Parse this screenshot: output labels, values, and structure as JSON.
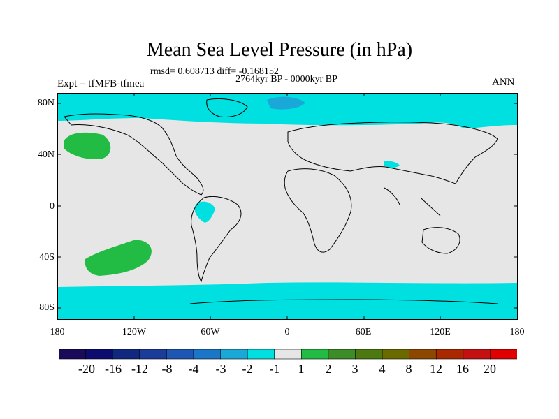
{
  "title": "Mean Sea Level Pressure (in hPa)",
  "stats": "rmsd= 0.608713 diff= -0.168152",
  "period": "2764kyr BP - 0000kyr BP",
  "experiment": "Expt = tfMFB-tfmea",
  "season": "ANN",
  "lat_labels": [
    "80N",
    "40N",
    "0",
    "40S",
    "80S"
  ],
  "lon_labels": [
    "180",
    "120W",
    "60W",
    "0",
    "60E",
    "120E",
    "180"
  ],
  "colorbar": {
    "labels": [
      "-20",
      "-16",
      "-12",
      "-8",
      "-4",
      "-3",
      "-2",
      "-1",
      "1",
      "2",
      "3",
      "4",
      "8",
      "12",
      "16",
      "20"
    ],
    "colors": [
      "#1a0a5a",
      "#0c0c70",
      "#102880",
      "#1c3c9a",
      "#1e56b4",
      "#1c76c8",
      "#1aa8d8",
      "#00e0e0",
      "#e6e6e6",
      "#22bb44",
      "#3c8c28",
      "#4c7a10",
      "#6a6a00",
      "#8c4800",
      "#aa2800",
      "#c41010",
      "#e00000"
    ]
  },
  "colors": {
    "background": "#e6e6e6",
    "negative_small": "#00e0e0",
    "negative_mid": "#1aa8d8",
    "positive_small": "#22bb44"
  }
}
